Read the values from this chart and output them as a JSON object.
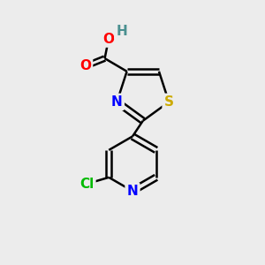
{
  "background_color": "#ececec",
  "atom_colors": {
    "C": "#000000",
    "H": "#4a9090",
    "N": "#0000ff",
    "O": "#ff0000",
    "S": "#ccaa00",
    "Cl": "#00bb00"
  },
  "bond_color": "#000000",
  "bond_width": 1.8,
  "font_size": 11,
  "fig_size": [
    3.0,
    3.0
  ],
  "dpi": 100,
  "xlim": [
    0,
    10
  ],
  "ylim": [
    0,
    10
  ]
}
